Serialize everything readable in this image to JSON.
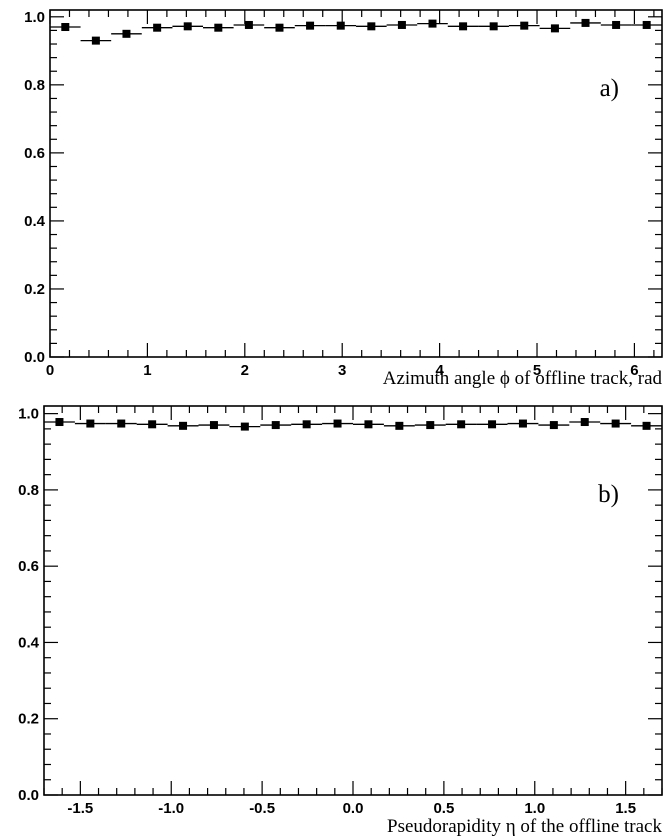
{
  "chart_data": [
    {
      "type": "scatter",
      "panel_label": "a)",
      "title": "",
      "xlabel": "Azimuth angle ϕ of offline track, rad",
      "ylabel": "",
      "xlim": [
        0,
        6.2832
      ],
      "ylim": [
        0.0,
        1.02
      ],
      "xticks": [
        "0",
        "1",
        "2",
        "3",
        "4",
        "5",
        "6"
      ],
      "yticks": [
        "0.0",
        "0.2",
        "0.4",
        "0.6",
        "0.8",
        "1.0"
      ],
      "bin_width": 0.31416,
      "x": [
        0.157,
        0.471,
        0.785,
        1.1,
        1.414,
        1.728,
        2.042,
        2.356,
        2.67,
        2.985,
        3.299,
        3.613,
        3.927,
        4.241,
        4.555,
        4.869,
        5.184,
        5.498,
        5.812,
        6.126
      ],
      "y": [
        0.97,
        0.93,
        0.95,
        0.968,
        0.972,
        0.968,
        0.976,
        0.968,
        0.974,
        0.974,
        0.972,
        0.976,
        0.98,
        0.972,
        0.972,
        0.974,
        0.966,
        0.982,
        0.976,
        0.976
      ]
    },
    {
      "type": "scatter",
      "panel_label": "b)",
      "title": "",
      "xlabel": "Pseudorapidity η of the offline track",
      "ylabel": "",
      "xlim": [
        -1.7,
        1.7
      ],
      "ylim": [
        0.0,
        1.02
      ],
      "xticks": [
        "-1.5",
        "-1.0",
        "-0.5",
        "0.0",
        "0.5",
        "1.0",
        "1.5"
      ],
      "yticks": [
        "0.0",
        "0.2",
        "0.4",
        "0.6",
        "0.8",
        "1.0"
      ],
      "bin_width": 0.17,
      "x": [
        -1.615,
        -1.445,
        -1.275,
        -1.105,
        -0.935,
        -0.765,
        -0.595,
        -0.425,
        -0.255,
        -0.085,
        0.085,
        0.255,
        0.425,
        0.595,
        0.765,
        0.935,
        1.105,
        1.275,
        1.445,
        1.615
      ],
      "y": [
        0.978,
        0.974,
        0.974,
        0.972,
        0.968,
        0.97,
        0.966,
        0.97,
        0.972,
        0.974,
        0.972,
        0.968,
        0.97,
        0.972,
        0.972,
        0.974,
        0.97,
        0.978,
        0.974,
        0.968
      ]
    }
  ]
}
